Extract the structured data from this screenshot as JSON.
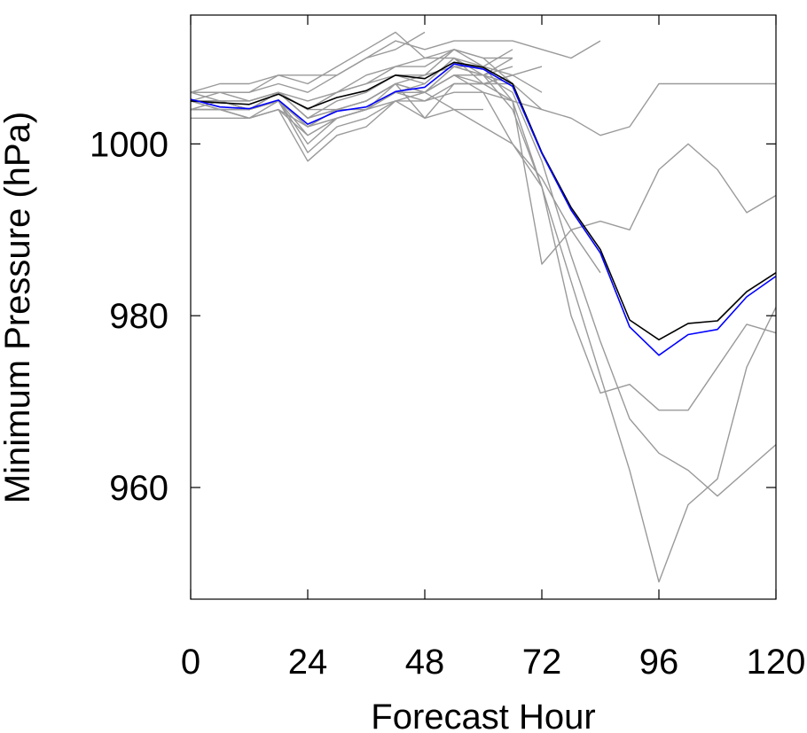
{
  "chart_data": {
    "type": "line",
    "title": "",
    "xlabel": "Forecast Hour",
    "ylabel": "Minimum Pressure (hPa)",
    "xlim": [
      0,
      120
    ],
    "ylim": [
      947,
      1015
    ],
    "xticks": [
      0,
      24,
      48,
      72,
      96,
      120
    ],
    "yticks": [
      960,
      980,
      1000
    ],
    "xtick_labels": [
      "0",
      "24",
      "48",
      "72",
      "96",
      "120"
    ],
    "ytick_labels": [
      "960",
      "980",
      "1000"
    ],
    "grid": false,
    "legend": "none",
    "colors": {
      "members": "#9a9a9a",
      "mean": "#000000",
      "highlight": "#0000ff"
    },
    "series": [
      {
        "color": "#0000ff",
        "role": "highlight",
        "x": [
          0,
          6,
          12,
          18,
          24,
          30,
          36,
          42,
          48,
          54,
          60,
          66,
          72,
          78,
          84,
          90,
          96,
          102,
          108,
          114,
          120
        ],
        "y": [
          1005.2,
          1004.3,
          1004.1,
          1005.1,
          1002.3,
          1003.8,
          1004.3,
          1006.1,
          1006.6,
          1009.3,
          1008.7,
          1006.7,
          998.9,
          992.3,
          987.3,
          978.7,
          975.4,
          977.8,
          978.4,
          982.2,
          984.6
        ]
      },
      {
        "color": "#000000",
        "role": "mean",
        "x": [
          0,
          6,
          12,
          18,
          24,
          30,
          36,
          42,
          48,
          54,
          60,
          66,
          72,
          78,
          84,
          90,
          96,
          102,
          108,
          114,
          120
        ],
        "y": [
          1005.0,
          1004.8,
          1004.6,
          1005.8,
          1004.1,
          1005.4,
          1006.2,
          1008.0,
          1007.6,
          1009.5,
          1008.9,
          1007.0,
          999.0,
          992.6,
          987.7,
          979.5,
          977.2,
          979.1,
          979.4,
          982.8,
          985.0
        ]
      },
      {
        "color": "#9a9a9a",
        "role": "member",
        "x": [
          0,
          6,
          12,
          18,
          24,
          30,
          36,
          42,
          48,
          54,
          60,
          66,
          72,
          78,
          84,
          90,
          96,
          102,
          108,
          114,
          120
        ],
        "y": [
          1005,
          1005,
          1004,
          1006,
          1003,
          1005,
          1006,
          1008,
          1007,
          1010,
          1007,
          1005,
          986,
          990,
          991,
          990,
          997,
          1000,
          997,
          992,
          994
        ]
      },
      {
        "color": "#9a9a9a",
        "role": "member",
        "x": [
          0,
          6,
          12,
          18,
          24,
          30,
          36,
          42,
          48,
          54,
          60,
          66,
          72,
          78,
          84,
          90,
          96,
          102,
          108,
          114,
          120
        ],
        "y": [
          1004,
          1005,
          1005,
          1006,
          1004,
          1006,
          1007,
          1008,
          1008,
          1009,
          1008,
          1004,
          995,
          980,
          971,
          972,
          969,
          969,
          974,
          979,
          978
        ]
      },
      {
        "color": "#9a9a9a",
        "role": "member",
        "x": [
          0,
          6,
          12,
          18,
          24,
          30,
          36,
          42,
          48,
          54,
          60,
          66,
          72,
          78,
          84,
          90,
          96,
          102,
          108,
          114,
          120
        ],
        "y": [
          1005,
          1005,
          1004,
          1005,
          1001,
          1003,
          1004,
          1006,
          1007,
          1010,
          1008,
          1006,
          998,
          987,
          977,
          968,
          964,
          962,
          959,
          962,
          965
        ]
      },
      {
        "color": "#9a9a9a",
        "role": "member",
        "x": [
          0,
          6,
          12,
          18,
          24,
          30,
          36,
          42,
          48,
          54,
          60,
          66,
          72,
          78,
          84,
          90,
          96,
          102,
          108,
          114,
          120
        ],
        "y": [
          1006,
          1005,
          1005,
          1006,
          1003,
          1004,
          1005,
          1007,
          1008,
          1011,
          1009,
          1005,
          995,
          984,
          973,
          962,
          949,
          958,
          961,
          974,
          981
        ]
      },
      {
        "color": "#9a9a9a",
        "role": "member",
        "x": [
          0,
          6,
          12,
          18,
          24,
          30,
          36,
          42,
          48,
          54,
          60,
          66,
          72,
          78,
          84,
          90,
          96,
          102,
          108,
          114,
          120
        ],
        "y": [
          1005,
          1006,
          1005,
          1006,
          1005,
          1006,
          1008,
          1009,
          1009,
          1011,
          1010,
          1007,
          1004,
          1003,
          1001,
          1002,
          1007,
          1007,
          1007,
          1007,
          1007
        ]
      },
      {
        "color": "#9a9a9a",
        "role": "member",
        "x": [
          0,
          6,
          12,
          18,
          24,
          30,
          36,
          42,
          48,
          54,
          60,
          66,
          72,
          78,
          84
        ],
        "y": [
          1006,
          1006,
          1006,
          1007,
          1006,
          1008,
          1010,
          1012,
          1011,
          1012,
          1012,
          1012,
          1011,
          1010,
          1012
        ]
      },
      {
        "color": "#9a9a9a",
        "role": "member",
        "x": [
          0,
          6,
          12,
          18,
          24,
          30,
          36,
          42,
          48,
          54,
          60,
          66
        ],
        "y": [
          1005,
          1005,
          1004,
          1006,
          1004,
          1006,
          1007,
          1009,
          1010,
          1011,
          1010,
          1010
        ]
      },
      {
        "color": "#9a9a9a",
        "role": "member",
        "x": [
          0,
          6,
          12,
          18,
          24,
          30,
          36,
          42,
          48,
          54,
          60,
          66,
          72
        ],
        "y": [
          1004,
          1004,
          1003,
          1005,
          1002,
          1004,
          1005,
          1007,
          1006,
          1008,
          1007,
          1008,
          1009
        ]
      },
      {
        "color": "#9a9a9a",
        "role": "member",
        "x": [
          0,
          6,
          12,
          18,
          24,
          30,
          36,
          42,
          48,
          54,
          60,
          66
        ],
        "y": [
          1004,
          1004,
          1003,
          1004,
          1001,
          1003,
          1004,
          1006,
          1005,
          1007,
          1007,
          1008
        ]
      },
      {
        "color": "#9a9a9a",
        "role": "member",
        "x": [
          0,
          6,
          12,
          18,
          24,
          30,
          36,
          42,
          48,
          54,
          60,
          66
        ],
        "y": [
          1005,
          1005,
          1004,
          1005,
          1002,
          1004,
          1005,
          1007,
          1006,
          1009,
          1008,
          1009
        ]
      },
      {
        "color": "#9a9a9a",
        "role": "member",
        "x": [
          0,
          6,
          12,
          18,
          24,
          30,
          36,
          42,
          48,
          54,
          60,
          66,
          72
        ],
        "y": [
          1006,
          1006,
          1006,
          1008,
          1007,
          1009,
          1011,
          1013,
          1010,
          1010,
          1009,
          1008,
          1006
        ]
      },
      {
        "color": "#9a9a9a",
        "role": "member",
        "x": [
          0,
          6,
          12,
          18,
          24,
          30,
          36,
          42,
          48,
          54,
          60,
          66
        ],
        "y": [
          1003,
          1003,
          1003,
          1004,
          998,
          1001,
          1002,
          1005,
          1003,
          1007,
          1007,
          1007
        ]
      },
      {
        "color": "#9a9a9a",
        "role": "member",
        "x": [
          0,
          6,
          12,
          18,
          24,
          30,
          36,
          42,
          48,
          54,
          60,
          66
        ],
        "y": [
          1004,
          1004,
          1004,
          1005,
          999,
          1002,
          1003,
          1005,
          1006,
          1008,
          1008,
          1010
        ]
      },
      {
        "color": "#9a9a9a",
        "role": "member",
        "x": [
          0,
          6,
          12,
          18,
          24,
          30,
          36,
          42,
          48,
          54,
          60,
          66
        ],
        "y": [
          1005,
          1005,
          1004,
          1005,
          1000,
          1003,
          1004,
          1006,
          1006,
          1009,
          1009,
          1011
        ]
      },
      {
        "color": "#9a9a9a",
        "role": "member",
        "x": [
          0,
          6,
          12,
          18,
          24,
          30,
          36,
          42,
          48
        ],
        "y": [
          1006,
          1007,
          1007,
          1008,
          1008,
          1008,
          1010,
          1011,
          1013
        ]
      },
      {
        "color": "#9a9a9a",
        "role": "member",
        "x": [
          0,
          6,
          12,
          18,
          24,
          30,
          36,
          42,
          48,
          54,
          60,
          66,
          72
        ],
        "y": [
          1005,
          1004,
          1004,
          1005,
          1002,
          1003,
          1004,
          1007,
          1006,
          1008,
          1006,
          1000,
          995
        ]
      },
      {
        "color": "#9a9a9a",
        "role": "member",
        "x": [
          0,
          6,
          12,
          18,
          24,
          30,
          36,
          42,
          48,
          54,
          60
        ],
        "y": [
          1005,
          1005,
          1004,
          1006,
          1003,
          1004,
          1005,
          1007,
          1003,
          1004,
          1004
        ]
      },
      {
        "color": "#9a9a9a",
        "role": "member",
        "x": [
          0,
          6,
          12,
          18,
          24,
          30,
          36,
          42,
          48,
          54,
          60,
          66,
          72
        ],
        "y": [
          1004,
          1004,
          1003,
          1004,
          1002,
          1003,
          1004,
          1005,
          1005,
          1006,
          1006,
          1005,
          1004
        ]
      },
      {
        "color": "#9a9a9a",
        "role": "member",
        "x": [
          0,
          6,
          12,
          18,
          24,
          30,
          36,
          42,
          48,
          54,
          60,
          66,
          72
        ],
        "y": [
          1005,
          1004,
          1004,
          1006,
          1004,
          1004,
          1004,
          1006,
          1006,
          1008,
          1008,
          1007,
          999
        ]
      },
      {
        "color": "#9a9a9a",
        "role": "member",
        "x": [
          48,
          54,
          60,
          66,
          72,
          78,
          84
        ],
        "y": [
          1006,
          1004,
          1002,
          1000,
          996,
          990,
          985
        ]
      }
    ]
  }
}
